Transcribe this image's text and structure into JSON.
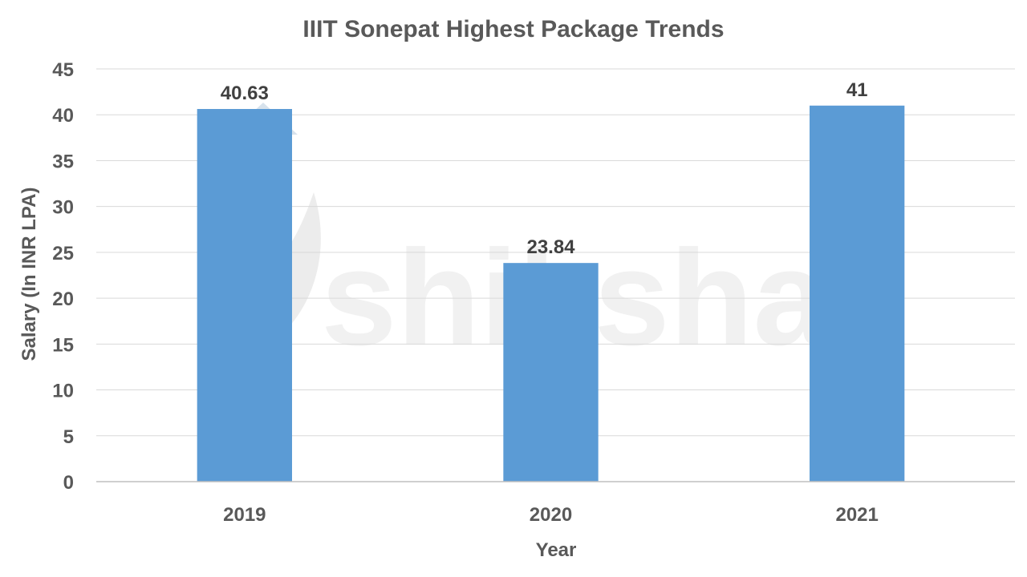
{
  "chart_data": {
    "type": "bar",
    "title": "IIIT Sonepat Highest Package Trends",
    "xlabel": "Year",
    "ylabel": "Salary (In INR LPA)",
    "categories": [
      "2019",
      "2020",
      "2021"
    ],
    "values": [
      40.63,
      23.84,
      41
    ],
    "data_labels": [
      "40.63",
      "23.84",
      "41"
    ],
    "y_ticks": [
      "0",
      "5",
      "10",
      "15",
      "20",
      "25",
      "30",
      "35",
      "40",
      "45"
    ],
    "ylim": [
      0,
      45
    ],
    "grid": true,
    "legend": "none",
    "bar_color": "#5b9bd5"
  },
  "watermark": {
    "text": "shiksha"
  }
}
